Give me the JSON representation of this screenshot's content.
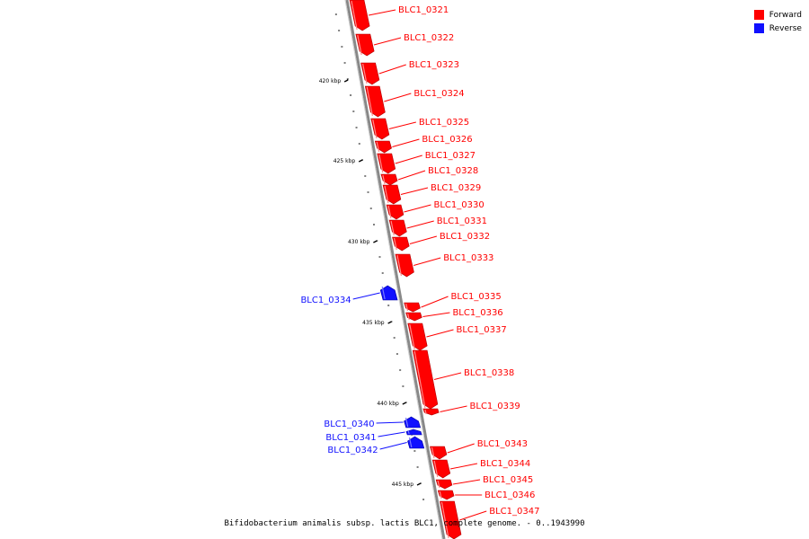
{
  "colors": {
    "forward": "#ff0000",
    "reverse": "#1010ff",
    "backbone": "#888888"
  },
  "legend": [
    {
      "key": "forward",
      "label": "Forward",
      "color": "#ff0000"
    },
    {
      "key": "reverse",
      "label": "Reverse",
      "color": "#1010ff"
    }
  ],
  "caption": "Bifidobacterium animalis subsp. lactis BLC1, complete genome. - 0..1943990",
  "scale_labels": [
    "420 kbp",
    "425 kbp",
    "430 kbp",
    "435 kbp",
    "440 kbp",
    "445 kbp"
  ],
  "genes": [
    {
      "name": "BLC1_0321",
      "strand": "forward"
    },
    {
      "name": "BLC1_0322",
      "strand": "forward"
    },
    {
      "name": "BLC1_0323",
      "strand": "forward"
    },
    {
      "name": "BLC1_0324",
      "strand": "forward"
    },
    {
      "name": "BLC1_0325",
      "strand": "forward"
    },
    {
      "name": "BLC1_0326",
      "strand": "forward"
    },
    {
      "name": "BLC1_0327",
      "strand": "forward"
    },
    {
      "name": "BLC1_0328",
      "strand": "forward"
    },
    {
      "name": "BLC1_0329",
      "strand": "forward"
    },
    {
      "name": "BLC1_0330",
      "strand": "forward"
    },
    {
      "name": "BLC1_0331",
      "strand": "forward"
    },
    {
      "name": "BLC1_0332",
      "strand": "forward"
    },
    {
      "name": "BLC1_0333",
      "strand": "forward"
    },
    {
      "name": "BLC1_0334",
      "strand": "reverse"
    },
    {
      "name": "BLC1_0335",
      "strand": "forward"
    },
    {
      "name": "BLC1_0336",
      "strand": "forward"
    },
    {
      "name": "BLC1_0337",
      "strand": "forward"
    },
    {
      "name": "BLC1_0338",
      "strand": "forward"
    },
    {
      "name": "BLC1_0339",
      "strand": "forward"
    },
    {
      "name": "BLC1_0340",
      "strand": "reverse"
    },
    {
      "name": "BLC1_0341",
      "strand": "reverse"
    },
    {
      "name": "BLC1_0342",
      "strand": "reverse"
    },
    {
      "name": "BLC1_0343",
      "strand": "forward"
    },
    {
      "name": "BLC1_0344",
      "strand": "forward"
    },
    {
      "name": "BLC1_0345",
      "strand": "forward"
    },
    {
      "name": "BLC1_0346",
      "strand": "forward"
    },
    {
      "name": "BLC1_0347",
      "strand": "forward"
    }
  ]
}
